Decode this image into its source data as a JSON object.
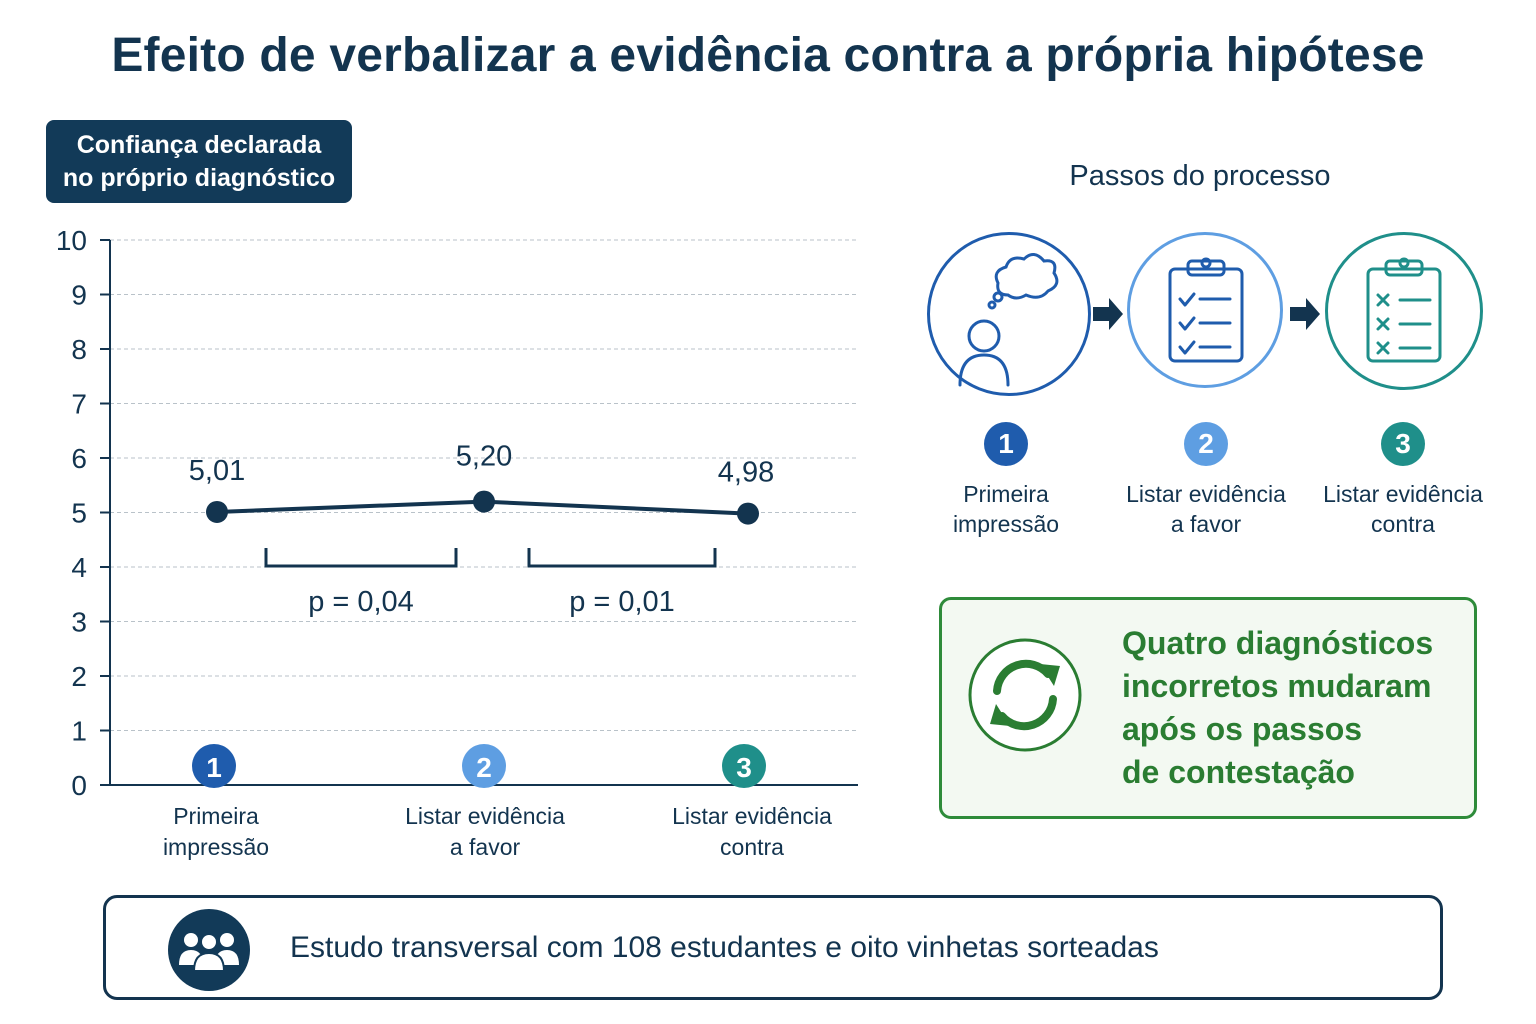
{
  "title": "Efeito de verbalizar a evidência contra a própria hipótese",
  "chart_data": {
    "type": "line",
    "ylabel": "Confiança declarada\nno próprio diagnóstico",
    "categories": [
      "Primeira\nimpressão",
      "Listar evidência\na favor",
      "Listar evidência\ncontra"
    ],
    "category_badges": [
      "1",
      "2",
      "3"
    ],
    "values": [
      5.01,
      5.2,
      4.98
    ],
    "value_labels": [
      "5,01",
      "5,20",
      "4,98"
    ],
    "y_ticks": [
      "0",
      "1",
      "2",
      "3",
      "4",
      "5",
      "6",
      "7",
      "8",
      "9",
      "10"
    ],
    "ylim": [
      0,
      10
    ],
    "grid": true,
    "comparisons": [
      {
        "from": 0,
        "to": 1,
        "label": "p = 0,04"
      },
      {
        "from": 1,
        "to": 2,
        "label": "p = 0,01"
      }
    ]
  },
  "steps": {
    "title": "Passos do processo",
    "items": [
      {
        "number": "1",
        "label": "Primeira\nimpressão",
        "icon": "thinking-person-icon"
      },
      {
        "number": "2",
        "label": "Listar evidência\na favor",
        "icon": "clipboard-checklist-icon"
      },
      {
        "number": "3",
        "label": "Listar evidência\ncontra",
        "icon": "clipboard-crosses-icon"
      }
    ]
  },
  "result": {
    "text": "Quatro diagnósticos\nincorretos mudaram\napós os passos\nde contestação",
    "icon": "refresh-cycle-icon"
  },
  "footer": {
    "text": "Estudo transversal com 108 estudantes e oito vinhetas sorteadas",
    "icon": "group-people-icon"
  },
  "colors": {
    "navy": "#13344f",
    "step1": "#1f5cad",
    "step2": "#5e9ee2",
    "step3": "#1f8f8a",
    "green": "#2a7d32"
  }
}
